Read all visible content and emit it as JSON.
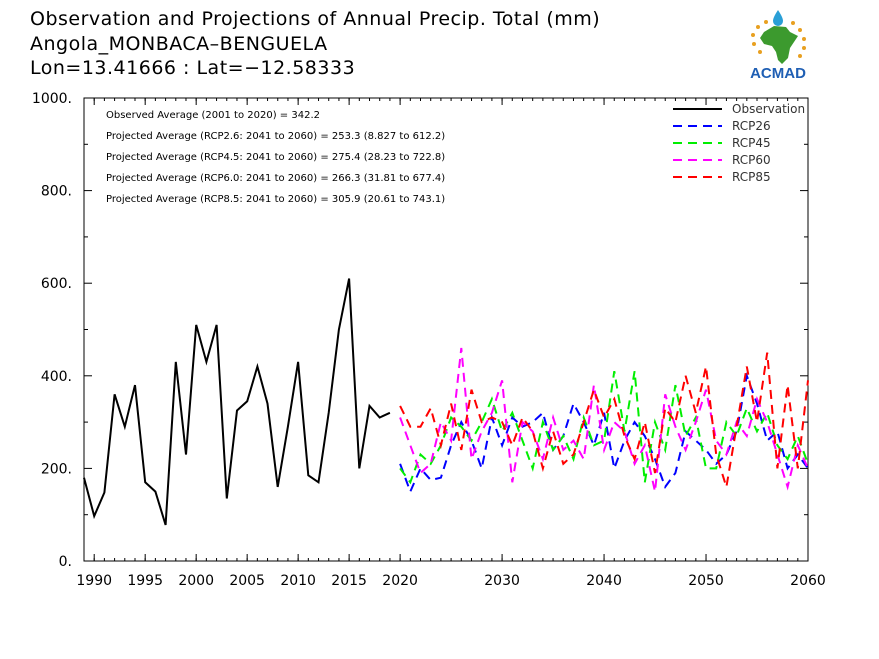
{
  "title": {
    "line1": "Observation and Projections of Annual Precip. Total (mm)",
    "line2": "Angola_MONBACA–BENGUELA",
    "line3": "Lon=13.41666 : Lat=−12.58333"
  },
  "logo": {
    "text": "ACMAD",
    "icon": "africa-map-logo-icon"
  },
  "colors": {
    "observation": "#000000",
    "RCP26": "#0000ff",
    "RCP45": "#00ee00",
    "RCP60": "#ff00ff",
    "RCP85": "#ff0000",
    "logo_text": "#1f5fb4",
    "logo_africa": "#3c9a2e"
  },
  "stats": [
    "Observed Average (2001 to 2020) = 342.2",
    "Projected Average (RCP2.6: 2041 to 2060) = 253.3 (8.827 to 612.2)",
    "Projected Average (RCP4.5: 2041 to 2060) = 275.4 (28.23 to 722.8)",
    "Projected Average (RCP6.0: 2041 to 2060) = 266.3 (31.81 to 677.4)",
    "Projected Average (RCP8.5: 2041 to 2060) = 305.9 (20.61 to 743.1)"
  ],
  "chart_data": {
    "type": "line",
    "xlim": [
      1989,
      2060
    ],
    "ylim": [
      0,
      1000
    ],
    "grid": false,
    "legend_placement": "top-right",
    "x_ticks": [
      1990,
      1995,
      2000,
      2005,
      2010,
      2015,
      2020,
      2030,
      2040,
      2050,
      2060
    ],
    "x_tick_labels": [
      "1990",
      "1995",
      "2000",
      "2005",
      "2010",
      "2015",
      "2020",
      "2030",
      "2040",
      "2050",
      "2060"
    ],
    "y_ticks": [
      0,
      200,
      400,
      600,
      800,
      1000
    ],
    "y_tick_labels": [
      "0.",
      "200.",
      "400.",
      "600.",
      "800.",
      "1000."
    ],
    "series": [
      {
        "name": "Observation",
        "style": "solid",
        "x": [
          1989,
          1990,
          1991,
          1992,
          1993,
          1994,
          1995,
          1996,
          1997,
          1998,
          1999,
          2000,
          2001,
          2002,
          2003,
          2004,
          2005,
          2006,
          2007,
          2008,
          2009,
          2010,
          2011,
          2012,
          2013,
          2014,
          2015,
          2016,
          2017,
          2018,
          2019
        ],
        "y": [
          180,
          97,
          148,
          360,
          290,
          380,
          170,
          150,
          78,
          430,
          230,
          510,
          430,
          510,
          135,
          325,
          345,
          420,
          340,
          160,
          290,
          430,
          185,
          170,
          320,
          500,
          610,
          200,
          335,
          310,
          320
        ]
      },
      {
        "name": "RCP26",
        "style": "dashed",
        "x": [
          2020,
          2021,
          2022,
          2023,
          2024,
          2025,
          2026,
          2027,
          2028,
          2029,
          2030,
          2031,
          2032,
          2033,
          2034,
          2035,
          2036,
          2037,
          2038,
          2039,
          2040,
          2041,
          2042,
          2043,
          2044,
          2045,
          2046,
          2047,
          2048,
          2049,
          2050,
          2051,
          2052,
          2053,
          2054,
          2055,
          2056,
          2057,
          2058,
          2059,
          2060
        ],
        "y": [
          210,
          150,
          200,
          175,
          180,
          250,
          300,
          260,
          200,
          310,
          250,
          310,
          290,
          300,
          320,
          240,
          270,
          340,
          300,
          250,
          320,
          200,
          260,
          300,
          270,
          220,
          160,
          190,
          280,
          260,
          240,
          210,
          230,
          280,
          400,
          340,
          260,
          280,
          200,
          230,
          200
        ]
      },
      {
        "name": "RCP45",
        "style": "dashed",
        "x": [
          2020,
          2021,
          2022,
          2023,
          2024,
          2025,
          2026,
          2027,
          2028,
          2029,
          2030,
          2031,
          2032,
          2033,
          2034,
          2035,
          2036,
          2037,
          2038,
          2039,
          2040,
          2041,
          2042,
          2043,
          2044,
          2045,
          2046,
          2047,
          2048,
          2049,
          2050,
          2051,
          2052,
          2053,
          2054,
          2055,
          2056,
          2057,
          2058,
          2059,
          2060
        ],
        "y": [
          200,
          170,
          230,
          210,
          250,
          310,
          290,
          260,
          300,
          350,
          280,
          320,
          260,
          200,
          300,
          240,
          270,
          220,
          310,
          250,
          260,
          410,
          280,
          410,
          170,
          300,
          240,
          380,
          270,
          310,
          200,
          200,
          300,
          270,
          330,
          280,
          320,
          250,
          220,
          270,
          210
        ]
      },
      {
        "name": "RCP60",
        "style": "dashed",
        "x": [
          2020,
          2021,
          2022,
          2023,
          2024,
          2025,
          2026,
          2027,
          2028,
          2029,
          2030,
          2031,
          2032,
          2033,
          2034,
          2035,
          2036,
          2037,
          2038,
          2039,
          2040,
          2041,
          2042,
          2043,
          2044,
          2045,
          2046,
          2047,
          2048,
          2049,
          2050,
          2051,
          2052,
          2053,
          2054,
          2055,
          2056,
          2057,
          2058,
          2059,
          2060
        ],
        "y": [
          310,
          250,
          190,
          210,
          300,
          260,
          460,
          220,
          280,
          320,
          390,
          170,
          300,
          280,
          220,
          310,
          240,
          260,
          220,
          380,
          240,
          300,
          280,
          210,
          250,
          150,
          360,
          290,
          240,
          300,
          370,
          260,
          230,
          300,
          270,
          350,
          300,
          230,
          160,
          250,
          200
        ]
      },
      {
        "name": "RCP85",
        "style": "dashed",
        "x": [
          2020,
          2021,
          2022,
          2023,
          2024,
          2025,
          2026,
          2027,
          2028,
          2029,
          2030,
          2031,
          2032,
          2033,
          2034,
          2035,
          2036,
          2037,
          2038,
          2039,
          2040,
          2041,
          2042,
          2043,
          2044,
          2045,
          2046,
          2047,
          2048,
          2049,
          2050,
          2051,
          2052,
          2053,
          2054,
          2055,
          2056,
          2057,
          2058,
          2059,
          2060
        ],
        "y": [
          335,
          290,
          290,
          330,
          250,
          340,
          240,
          370,
          300,
          310,
          300,
          250,
          310,
          280,
          200,
          280,
          210,
          230,
          300,
          370,
          310,
          350,
          270,
          220,
          300,
          190,
          330,
          300,
          400,
          320,
          420,
          230,
          160,
          290,
          420,
          300,
          450,
          200,
          380,
          200,
          390
        ]
      }
    ]
  }
}
